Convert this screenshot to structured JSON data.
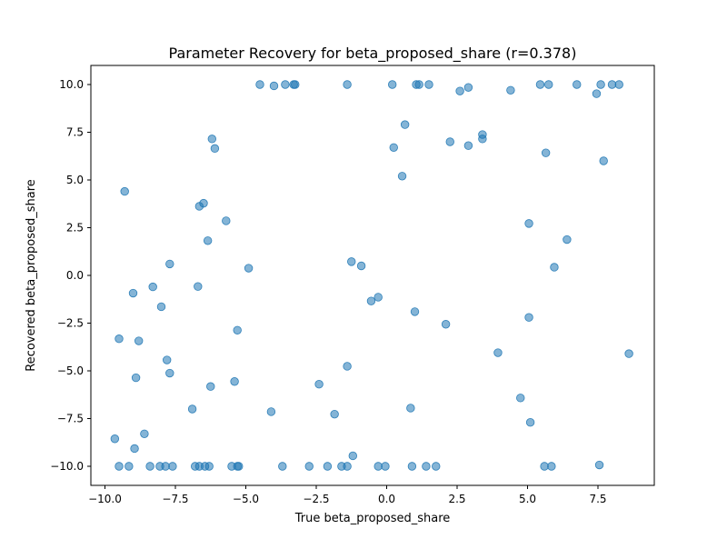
{
  "chart_data": {
    "type": "scatter",
    "title": "Parameter Recovery for beta_proposed_share (r=0.378)",
    "xlabel": "True beta_proposed_share",
    "ylabel": "Recovered beta_proposed_share",
    "xlim": [
      -10.5,
      9.5
    ],
    "ylim": [
      -11,
      11
    ],
    "xticks": [
      -10.0,
      -7.5,
      -5.0,
      -2.5,
      0.0,
      2.5,
      5.0,
      7.5
    ],
    "xtick_labels": [
      "−10.0",
      "−7.5",
      "−5.0",
      "−2.5",
      "0.0",
      "2.5",
      "5.0",
      "7.5"
    ],
    "yticks": [
      -10.0,
      -7.5,
      -5.0,
      -2.5,
      0.0,
      2.5,
      5.0,
      7.5,
      10.0
    ],
    "ytick_labels": [
      "−10.0",
      "−7.5",
      "−5.0",
      "−2.5",
      "0.0",
      "2.5",
      "5.0",
      "7.5",
      "10.0"
    ],
    "grid": false,
    "point_color": "#1f77b4",
    "point_alpha": 0.55,
    "points": [
      [
        -4.5,
        10.0
      ],
      [
        -4.0,
        9.93
      ],
      [
        -3.6,
        10.0
      ],
      [
        -3.3,
        10.0
      ],
      [
        -3.25,
        10.0
      ],
      [
        -1.4,
        10.0
      ],
      [
        0.2,
        10.0
      ],
      [
        1.05,
        10.0
      ],
      [
        1.15,
        10.0
      ],
      [
        1.5,
        10.0
      ],
      [
        2.9,
        9.85
      ],
      [
        2.6,
        9.66
      ],
      [
        4.4,
        9.7
      ],
      [
        5.45,
        10.0
      ],
      [
        5.75,
        10.0
      ],
      [
        6.75,
        10.0
      ],
      [
        7.45,
        9.52
      ],
      [
        7.6,
        10.0
      ],
      [
        8.0,
        10.0
      ],
      [
        8.25,
        10.0
      ],
      [
        0.65,
        7.9
      ],
      [
        3.4,
        7.38
      ],
      [
        3.4,
        7.15
      ],
      [
        2.25,
        7.0
      ],
      [
        2.9,
        6.8
      ],
      [
        0.25,
        6.7
      ],
      [
        -6.2,
        7.15
      ],
      [
        -6.1,
        6.65
      ],
      [
        5.65,
        6.42
      ],
      [
        7.7,
        6.0
      ],
      [
        0.55,
        5.2
      ],
      [
        -9.3,
        4.4
      ],
      [
        -6.5,
        3.78
      ],
      [
        -6.65,
        3.62
      ],
      [
        -5.7,
        2.86
      ],
      [
        5.05,
        2.72
      ],
      [
        -6.35,
        1.82
      ],
      [
        6.4,
        1.88
      ],
      [
        -7.7,
        0.6
      ],
      [
        -1.25,
        0.72
      ],
      [
        -0.9,
        0.5
      ],
      [
        -4.9,
        0.38
      ],
      [
        5.95,
        0.43
      ],
      [
        -8.3,
        -0.6
      ],
      [
        -6.7,
        -0.58
      ],
      [
        -9.0,
        -0.93
      ],
      [
        -0.3,
        -1.14
      ],
      [
        -0.55,
        -1.34
      ],
      [
        -8.0,
        -1.64
      ],
      [
        1.0,
        -1.9
      ],
      [
        5.05,
        -2.2
      ],
      [
        2.1,
        -2.56
      ],
      [
        -5.3,
        -2.87
      ],
      [
        -9.5,
        -3.32
      ],
      [
        -8.8,
        -3.43
      ],
      [
        3.95,
        -4.05
      ],
      [
        8.6,
        -4.1
      ],
      [
        -7.8,
        -4.43
      ],
      [
        -1.4,
        -4.76
      ],
      [
        -7.7,
        -5.12
      ],
      [
        -8.9,
        -5.36
      ],
      [
        -5.4,
        -5.56
      ],
      [
        -2.4,
        -5.7
      ],
      [
        -6.25,
        -5.82
      ],
      [
        4.75,
        -6.42
      ],
      [
        0.85,
        -6.95
      ],
      [
        -6.9,
        -7.0
      ],
      [
        -4.1,
        -7.14
      ],
      [
        -1.85,
        -7.27
      ],
      [
        5.1,
        -7.7
      ],
      [
        -8.6,
        -8.3
      ],
      [
        -9.65,
        -8.56
      ],
      [
        -8.95,
        -9.07
      ],
      [
        -1.2,
        -9.45
      ],
      [
        7.55,
        -9.93
      ],
      [
        -9.5,
        -10.0
      ],
      [
        -9.15,
        -10.0
      ],
      [
        -8.4,
        -10.0
      ],
      [
        -8.05,
        -10.0
      ],
      [
        -7.85,
        -10.0
      ],
      [
        -7.6,
        -10.0
      ],
      [
        -6.8,
        -10.0
      ],
      [
        -6.65,
        -10.0
      ],
      [
        -6.45,
        -10.0
      ],
      [
        -6.3,
        -10.0
      ],
      [
        -5.5,
        -10.0
      ],
      [
        -5.3,
        -10.0
      ],
      [
        -5.25,
        -10.0
      ],
      [
        -3.7,
        -10.0
      ],
      [
        -2.75,
        -10.0
      ],
      [
        -2.1,
        -10.0
      ],
      [
        -1.6,
        -10.0
      ],
      [
        -1.4,
        -10.0
      ],
      [
        -0.3,
        -10.0
      ],
      [
        -0.05,
        -10.0
      ],
      [
        0.9,
        -10.0
      ],
      [
        1.4,
        -10.0
      ],
      [
        1.75,
        -10.0
      ],
      [
        5.6,
        -10.0
      ],
      [
        5.85,
        -10.0
      ]
    ]
  }
}
